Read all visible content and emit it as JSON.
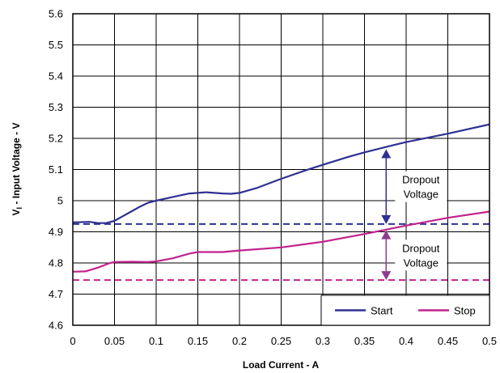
{
  "chart_data": {
    "type": "line",
    "xlabel": "Load Current - A",
    "ylabel_prefix": "V",
    "ylabel_sub": "I",
    "ylabel_rest": " - Input Voltage - V",
    "xlim": [
      0,
      0.5
    ],
    "ylim": [
      4.6,
      5.6
    ],
    "x_ticks": [
      "0",
      "0.05",
      "0.1",
      "0.15",
      "0.2",
      "0.25",
      "0.3",
      "0.35",
      "0.4",
      "0.45",
      "0.5"
    ],
    "y_ticks": [
      "4.6",
      "4.7",
      "4.8",
      "4.9",
      "5",
      "5.1",
      "5.2",
      "5.3",
      "5.4",
      "5.5",
      "5.6"
    ],
    "grid": true,
    "legend_position": "bottom-right",
    "series": [
      {
        "name": "Start",
        "color": "#2e3192",
        "x": [
          0,
          0.02,
          0.03,
          0.04,
          0.05,
          0.06,
          0.07,
          0.08,
          0.09,
          0.1,
          0.12,
          0.14,
          0.16,
          0.18,
          0.19,
          0.2,
          0.22,
          0.25,
          0.28,
          0.3,
          0.33,
          0.35,
          0.38,
          0.4,
          0.45,
          0.5
        ],
        "y": [
          4.93,
          4.932,
          4.928,
          4.928,
          4.935,
          4.95,
          4.965,
          4.98,
          4.993,
          5.0,
          5.012,
          5.023,
          5.027,
          5.023,
          5.022,
          5.025,
          5.04,
          5.07,
          5.098,
          5.115,
          5.14,
          5.155,
          5.175,
          5.188,
          5.215,
          5.245
        ]
      },
      {
        "name": "Stop",
        "color": "#c2228c",
        "x": [
          0,
          0.015,
          0.03,
          0.045,
          0.05,
          0.07,
          0.09,
          0.1,
          0.12,
          0.14,
          0.15,
          0.18,
          0.2,
          0.25,
          0.3,
          0.35,
          0.4,
          0.45,
          0.5
        ],
        "y": [
          4.772,
          4.773,
          4.785,
          4.8,
          4.803,
          4.804,
          4.803,
          4.805,
          4.815,
          4.83,
          4.835,
          4.835,
          4.84,
          4.85,
          4.868,
          4.893,
          4.92,
          4.945,
          4.965
        ]
      }
    ],
    "reference_lines": [
      {
        "y": 4.925,
        "color": "#2e3192",
        "style": "dashed"
      },
      {
        "y": 4.745,
        "color": "#c2228c",
        "style": "dashed"
      }
    ],
    "annotations": [
      {
        "lines": [
          "Dropout",
          "Voltage"
        ],
        "arrow_x": 0.376,
        "y_from": 4.925,
        "y_to": 5.165,
        "color": "#2e3192"
      },
      {
        "lines": [
          "Dropout",
          "Voltage"
        ],
        "arrow_x": 0.376,
        "y_from": 4.745,
        "y_to": 4.905,
        "color": "#8e3b8f"
      }
    ]
  }
}
